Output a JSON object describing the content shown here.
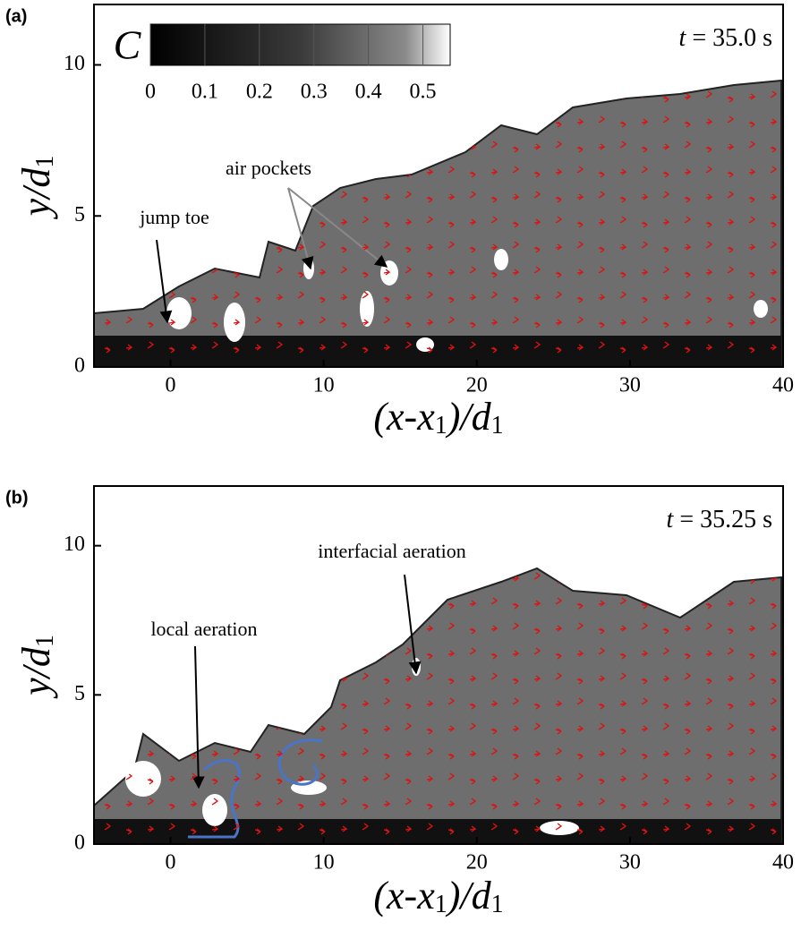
{
  "chart_data": [
    {
      "type": "contour",
      "panel_label": "(a)",
      "xlabel": [
        "(x-x",
        "1",
        ")/d",
        "1"
      ],
      "ylabel": [
        "y/d",
        "1"
      ],
      "xlim": [
        -5,
        40
      ],
      "xticks": [
        0,
        10,
        20,
        30,
        40
      ],
      "ylim": [
        0,
        12
      ],
      "yticks": [
        0,
        5,
        10
      ],
      "time_label": {
        "symbol": "t",
        "text": "= 35.0 s"
      },
      "colorbar": {
        "label": "C",
        "lim": [
          0,
          0.55
        ],
        "ticks": [
          0,
          0.1,
          0.2,
          0.3,
          0.4,
          0.5
        ]
      },
      "annotations": [
        "jump toe",
        "air pockets"
      ]
    },
    {
      "type": "contour",
      "panel_label": "(b)",
      "xlabel": [
        "(x-x",
        "1",
        ")/d",
        "1"
      ],
      "ylabel": [
        "y/d",
        "1"
      ],
      "xlim": [
        -5,
        40
      ],
      "xticks": [
        0,
        10,
        20,
        30,
        40
      ],
      "ylim": [
        0,
        12
      ],
      "yticks": [
        0,
        5,
        10
      ],
      "time_label": {
        "symbol": "t",
        "text": "= 35.25 s"
      },
      "annotations": [
        "interfacial aeration",
        "local aeration"
      ]
    }
  ]
}
